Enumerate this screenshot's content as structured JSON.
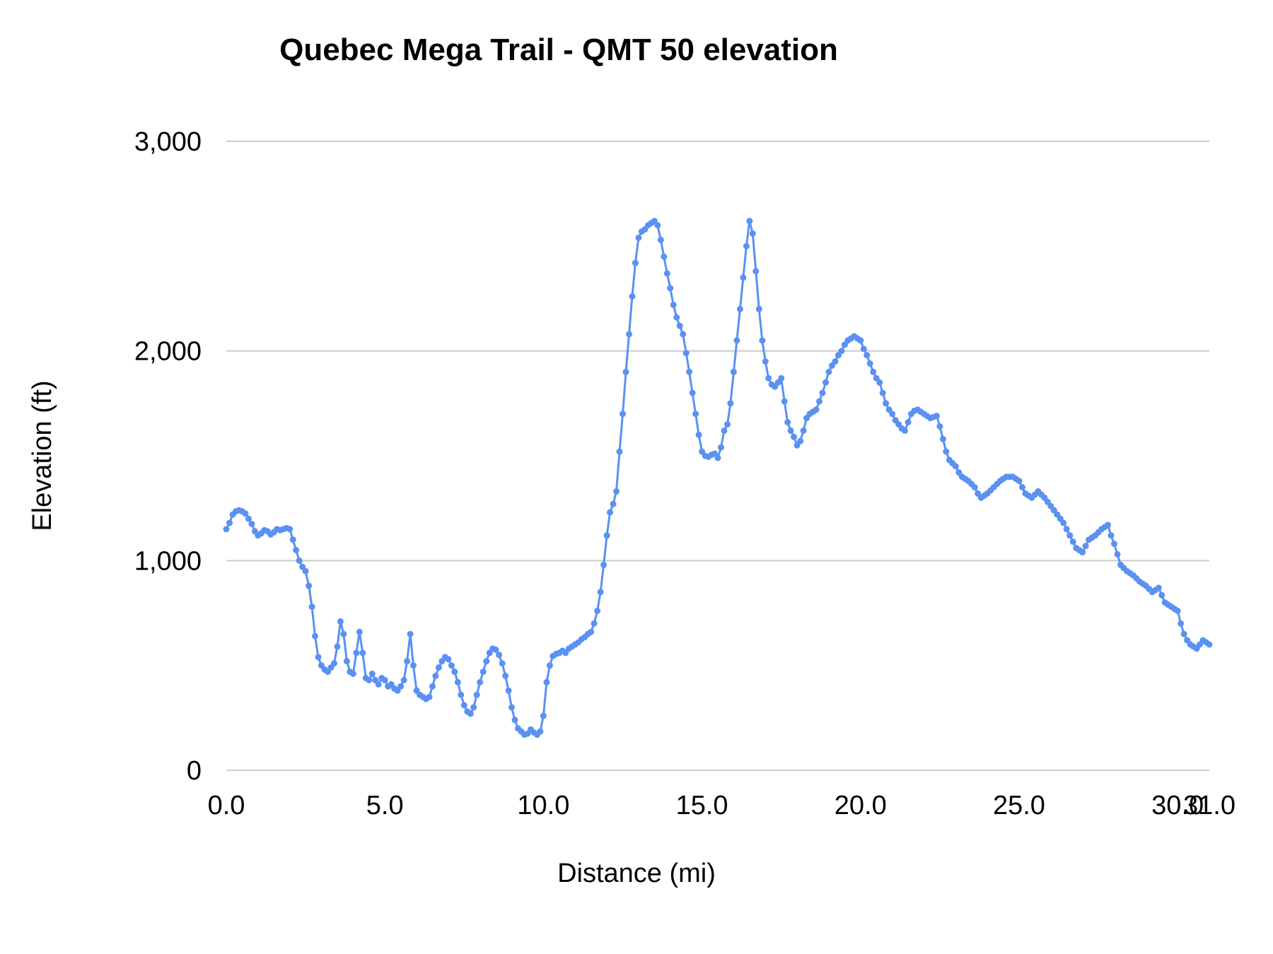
{
  "chart_data": {
    "type": "line",
    "title": "Quebec Mega Trail - QMT 50 elevation",
    "xlabel": "Distance (mi)",
    "ylabel": "Elevation (ft)",
    "xlim": [
      0,
      31
    ],
    "ylim": [
      0,
      3000
    ],
    "grid": true,
    "legend_position": "none",
    "x_ticks": [
      {
        "value": 0,
        "label": "0.0"
      },
      {
        "value": 5,
        "label": "5.0"
      },
      {
        "value": 10,
        "label": "10.0"
      },
      {
        "value": 15,
        "label": "15.0"
      },
      {
        "value": 20,
        "label": "20.0"
      },
      {
        "value": 25,
        "label": "25.0"
      },
      {
        "value": 30,
        "label": "30.0"
      },
      {
        "value": 31,
        "label": "31.0"
      }
    ],
    "y_ticks": [
      {
        "value": 0,
        "label": "0"
      },
      {
        "value": 1000,
        "label": "1,000"
      },
      {
        "value": 2000,
        "label": "2,000"
      },
      {
        "value": 3000,
        "label": "3,000"
      }
    ],
    "x_start": 0.0,
    "x_step": 0.1,
    "series": [
      {
        "name": "Elevation",
        "color": "#5a91f2",
        "values": [
          1150,
          1180,
          1220,
          1235,
          1240,
          1235,
          1225,
          1200,
          1175,
          1140,
          1120,
          1130,
          1145,
          1140,
          1125,
          1135,
          1150,
          1145,
          1150,
          1155,
          1150,
          1100,
          1050,
          1000,
          970,
          950,
          880,
          780,
          640,
          540,
          500,
          480,
          470,
          490,
          510,
          590,
          710,
          650,
          520,
          470,
          460,
          560,
          660,
          560,
          440,
          430,
          460,
          430,
          410,
          440,
          430,
          400,
          410,
          390,
          380,
          400,
          430,
          520,
          650,
          500,
          380,
          360,
          350,
          340,
          350,
          400,
          450,
          490,
          520,
          540,
          530,
          500,
          470,
          420,
          360,
          310,
          280,
          270,
          300,
          360,
          420,
          470,
          520,
          560,
          580,
          575,
          550,
          510,
          450,
          380,
          300,
          240,
          200,
          185,
          170,
          175,
          195,
          180,
          170,
          185,
          260,
          420,
          500,
          545,
          555,
          560,
          570,
          560,
          580,
          590,
          600,
          610,
          625,
          635,
          650,
          660,
          700,
          760,
          850,
          980,
          1120,
          1230,
          1270,
          1330,
          1520,
          1700,
          1900,
          2080,
          2260,
          2420,
          2540,
          2570,
          2580,
          2600,
          2610,
          2620,
          2600,
          2530,
          2450,
          2370,
          2300,
          2220,
          2160,
          2120,
          2080,
          1990,
          1900,
          1800,
          1700,
          1600,
          1520,
          1500,
          1495,
          1505,
          1510,
          1490,
          1540,
          1620,
          1650,
          1750,
          1900,
          2050,
          2200,
          2350,
          2500,
          2620,
          2560,
          2380,
          2200,
          2050,
          1950,
          1870,
          1840,
          1830,
          1850,
          1870,
          1760,
          1660,
          1620,
          1590,
          1550,
          1570,
          1620,
          1680,
          1700,
          1710,
          1720,
          1760,
          1800,
          1850,
          1900,
          1930,
          1950,
          1980,
          2000,
          2030,
          2050,
          2060,
          2070,
          2060,
          2050,
          2010,
          1980,
          1940,
          1900,
          1870,
          1850,
          1800,
          1750,
          1720,
          1700,
          1670,
          1650,
          1630,
          1620,
          1660,
          1700,
          1715,
          1720,
          1710,
          1700,
          1690,
          1680,
          1685,
          1690,
          1640,
          1580,
          1520,
          1480,
          1465,
          1450,
          1420,
          1400,
          1390,
          1380,
          1365,
          1350,
          1320,
          1300,
          1310,
          1320,
          1335,
          1350,
          1365,
          1380,
          1390,
          1400,
          1400,
          1400,
          1390,
          1380,
          1350,
          1320,
          1310,
          1300,
          1315,
          1330,
          1315,
          1300,
          1280,
          1260,
          1240,
          1220,
          1200,
          1180,
          1150,
          1120,
          1090,
          1060,
          1050,
          1040,
          1070,
          1100,
          1110,
          1120,
          1135,
          1150,
          1160,
          1170,
          1120,
          1080,
          1030,
          980,
          965,
          950,
          940,
          930,
          915,
          900,
          890,
          880,
          865,
          850,
          860,
          870,
          835,
          800,
          790,
          780,
          770,
          760,
          700,
          650,
          620,
          600,
          590,
          580,
          600,
          620,
          610,
          600
        ]
      }
    ]
  }
}
